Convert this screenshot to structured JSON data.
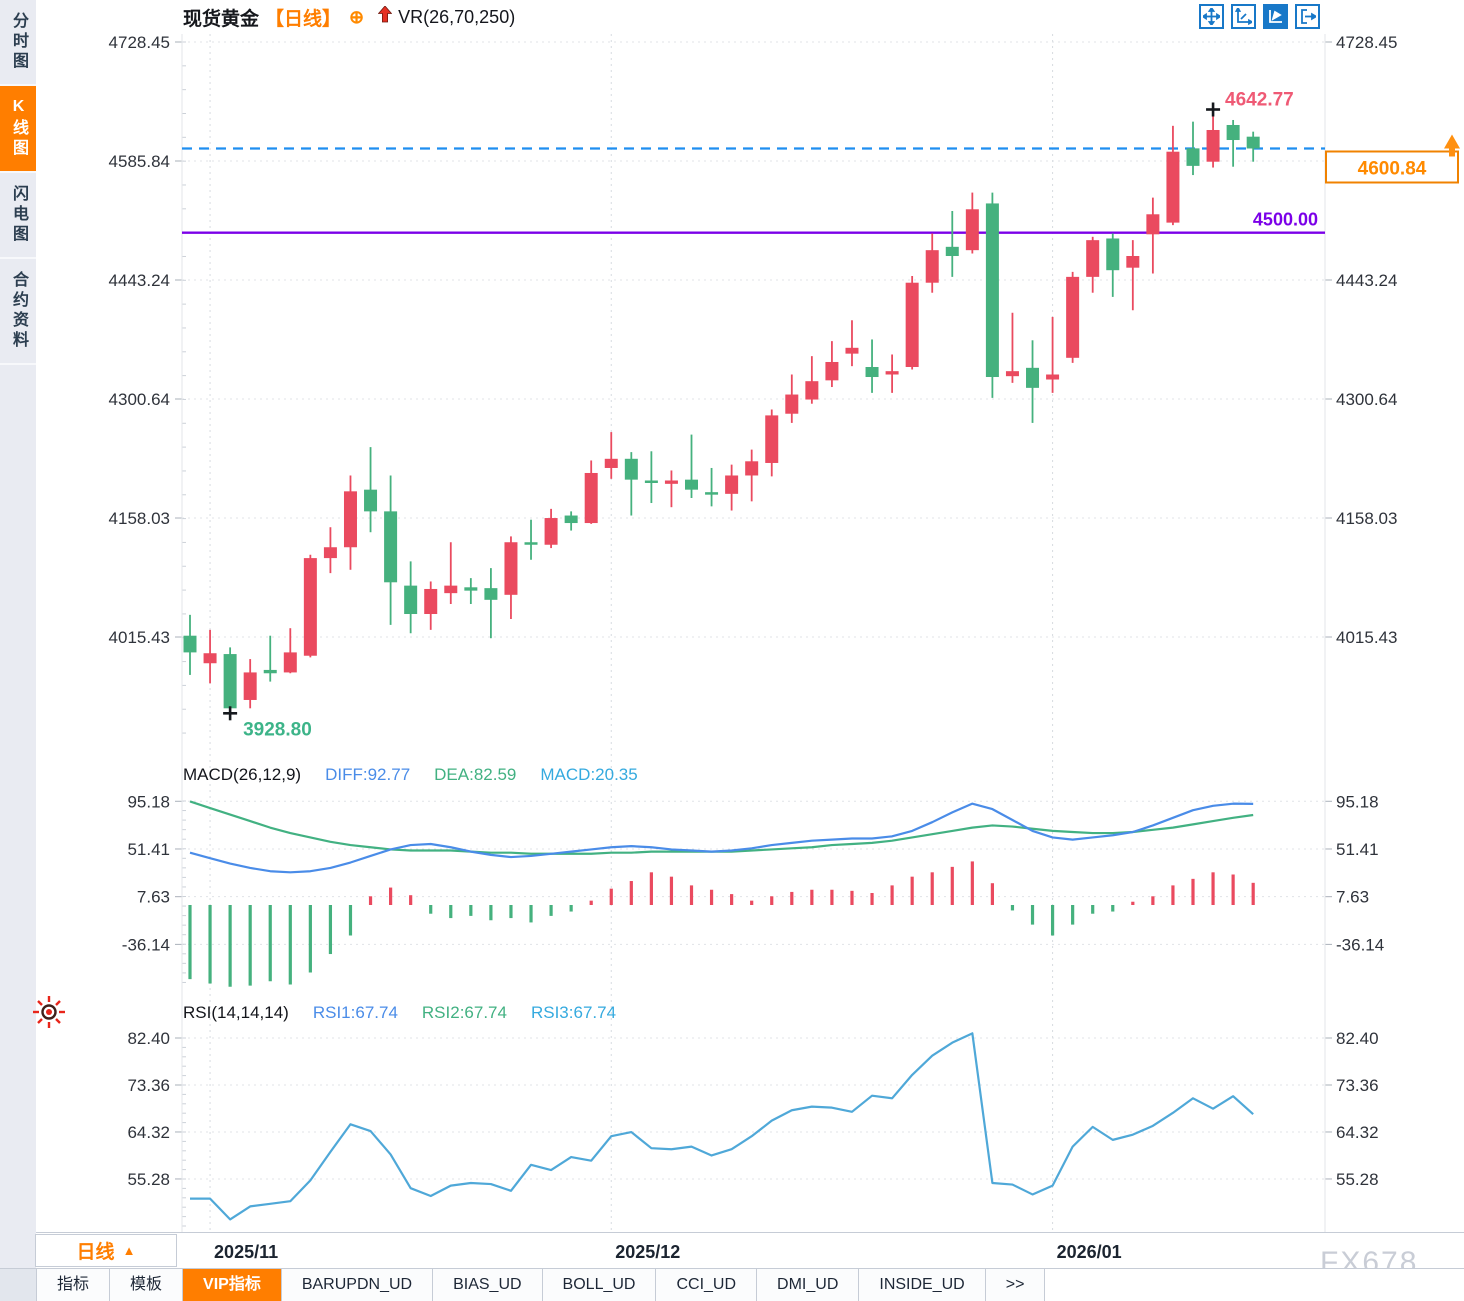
{
  "header": {
    "symbol": "现货黄金",
    "period_tag": "【日线】",
    "crosshair_glyph": "⊕",
    "indicator_label": "VR(26,70,250)"
  },
  "sidebar": {
    "items": [
      {
        "label": "分时图",
        "active": false
      },
      {
        "label": "K线图",
        "active": true
      },
      {
        "label": "闪电图",
        "active": false
      },
      {
        "label": "合约资料",
        "active": false
      }
    ]
  },
  "colors": {
    "accent_orange": "#ff7e00",
    "toolbar_blue": "#1878c8",
    "candle_up": "#ea4a5f",
    "candle_down": "#45b17e",
    "guide_dashed_blue": "#1e8ef0",
    "guide_purple": "#7b00e8",
    "rsi_line": "#4fa8d8"
  },
  "chart_data": {
    "type": "candlestick",
    "title": "现货黄金 日线 (Spot Gold Daily)",
    "x_axis": {
      "labels": [
        {
          "text": "2025/11",
          "index": 1
        },
        {
          "text": "2025/12",
          "index": 21
        },
        {
          "text": "2026/01",
          "index": 43
        }
      ]
    },
    "panels": [
      {
        "name": "price",
        "y_ticks": [
          4728.45,
          4585.84,
          4443.24,
          4300.64,
          4158.03,
          4015.43
        ],
        "colors": {
          "up": "#ea4a5f",
          "down": "#45b17e"
        },
        "candles": [
          [
            4017,
            4042,
            3970,
            3997
          ],
          [
            3984,
            4024,
            3960,
            3996
          ],
          [
            3995,
            4003,
            3928.8,
            3930
          ],
          [
            3940,
            3989,
            3930,
            3973
          ],
          [
            3976,
            4017,
            3962,
            3972
          ],
          [
            3973,
            4026,
            3972,
            3997
          ],
          [
            3993,
            4114,
            3991,
            4110
          ],
          [
            4110,
            4147,
            4092,
            4123
          ],
          [
            4123,
            4209,
            4096,
            4190
          ],
          [
            4192,
            4243,
            4141,
            4166
          ],
          [
            4166,
            4209,
            4030,
            4081
          ],
          [
            4077,
            4106,
            4020,
            4043
          ],
          [
            4043,
            4082,
            4024,
            4073
          ],
          [
            4068,
            4129,
            4055,
            4077
          ],
          [
            4075,
            4086,
            4055,
            4071
          ],
          [
            4074,
            4098,
            4014,
            4060
          ],
          [
            4066,
            4136,
            4037,
            4129
          ],
          [
            4129,
            4156,
            4108,
            4126
          ],
          [
            4126,
            4169,
            4122,
            4158
          ],
          [
            4161,
            4166,
            4143,
            4152
          ],
          [
            4152,
            4227,
            4151,
            4212
          ],
          [
            4218,
            4261,
            4205,
            4229
          ],
          [
            4229,
            4237,
            4161,
            4204
          ],
          [
            4203,
            4238,
            4176,
            4200
          ],
          [
            4199,
            4215,
            4171,
            4203
          ],
          [
            4204,
            4258,
            4182,
            4192
          ],
          [
            4189,
            4218,
            4172,
            4186
          ],
          [
            4187,
            4222,
            4167,
            4209
          ],
          [
            4209,
            4240,
            4178,
            4226
          ],
          [
            4224,
            4288,
            4208,
            4281
          ],
          [
            4283,
            4330,
            4272,
            4306
          ],
          [
            4300,
            4352,
            4295,
            4322
          ],
          [
            4323,
            4370,
            4315,
            4345
          ],
          [
            4355,
            4395,
            4340,
            4362
          ],
          [
            4339,
            4372,
            4308,
            4327
          ],
          [
            4330,
            4354,
            4308,
            4334
          ],
          [
            4339,
            4448,
            4336,
            4440
          ],
          [
            4440,
            4499,
            4428,
            4479
          ],
          [
            4483,
            4526,
            4447,
            4472
          ],
          [
            4479,
            4548,
            4475,
            4528
          ],
          [
            4535,
            4548,
            4302,
            4327
          ],
          [
            4328,
            4404,
            4320,
            4334
          ],
          [
            4338,
            4371,
            4272,
            4314
          ],
          [
            4324,
            4399,
            4308,
            4330
          ],
          [
            4350,
            4453,
            4344,
            4447
          ],
          [
            4447,
            4495,
            4428,
            4491
          ],
          [
            4493,
            4499,
            4423,
            4455
          ],
          [
            4458,
            4491,
            4407,
            4472
          ],
          [
            4498,
            4542,
            4451,
            4522
          ],
          [
            4512,
            4628,
            4509,
            4597
          ],
          [
            4601,
            4633,
            4569,
            4580
          ],
          [
            4585,
            4642.77,
            4578,
            4623
          ],
          [
            4629,
            4635,
            4579,
            4611
          ],
          [
            4615,
            4621,
            4585,
            4600.84
          ]
        ],
        "lines": [
          {
            "value": 4600.84,
            "label": "4600.84",
            "color": "#1e8ef0",
            "style": "dashed",
            "show_label": false
          },
          {
            "value": 4500.0,
            "label": "4500.00",
            "color": "#7b00e8",
            "style": "solid",
            "show_label": true
          }
        ],
        "annotations": {
          "high": {
            "index": 51,
            "value": 4642.77,
            "label": "4642.77",
            "color": "#ef5a75"
          },
          "low": {
            "index": 2,
            "value": 3928.8,
            "label": "3928.80",
            "color": "#3db489"
          },
          "last": {
            "value": 4600.84,
            "label": "4600.84",
            "box_color": "#f08200",
            "text_color": "#ff8a00"
          }
        }
      },
      {
        "name": "macd",
        "title": "MACD(26,12,9)",
        "legend": [
          {
            "label": "DIFF:92.77",
            "color": "#4a8ce8"
          },
          {
            "label": "DEA:82.59",
            "color": "#42b182"
          },
          {
            "label": "MACD:20.35",
            "color": "#35aadf"
          }
        ],
        "y_ticks": [
          95.18,
          51.41,
          7.63,
          -36.14
        ],
        "diff": [
          48,
          43,
          38,
          34,
          31,
          30,
          31,
          34,
          39,
          45,
          51,
          55,
          56,
          53,
          49,
          46,
          44,
          45,
          47,
          49,
          51,
          53,
          54,
          53,
          51,
          50,
          49,
          50,
          52,
          55,
          57,
          59,
          60,
          61,
          61,
          63,
          68,
          76,
          85,
          93,
          88,
          78,
          68,
          62,
          60,
          62,
          64,
          67,
          73,
          80,
          87,
          91,
          93,
          92.77
        ],
        "dea": [
          95,
          89,
          83,
          77,
          71,
          66,
          62,
          58,
          55,
          53,
          51,
          50,
          50,
          50,
          49,
          48,
          48,
          47,
          47,
          47,
          47,
          48,
          48,
          49,
          49,
          49,
          49,
          49,
          50,
          51,
          52,
          53,
          55,
          56,
          57,
          59,
          62,
          65,
          68,
          71,
          73,
          72,
          70,
          68,
          67,
          66,
          66,
          67,
          69,
          71,
          74,
          77,
          80,
          82.59
        ],
        "hist": [
          -68,
          -72,
          -75,
          -74,
          -70,
          -73,
          -62,
          -45,
          -28,
          8,
          16,
          9,
          -8,
          -12,
          -10,
          -14,
          -12,
          -16,
          -10,
          -6,
          4,
          15,
          22,
          30,
          26,
          18,
          14,
          10,
          4,
          8,
          12,
          14,
          14,
          13,
          11,
          18,
          26,
          30,
          35,
          40,
          20,
          -5,
          -18,
          -28,
          -18,
          -8,
          -6,
          3,
          8,
          18,
          24,
          30,
          28,
          20.35
        ]
      },
      {
        "name": "rsi",
        "title": "RSI(14,14,14)",
        "legend": [
          {
            "label": "RSI1:67.74",
            "color": "#4a8ce8"
          },
          {
            "label": "RSI2:67.74",
            "color": "#42b182"
          },
          {
            "label": "RSI3:67.74",
            "color": "#35aadf"
          }
        ],
        "y_ticks": [
          82.4,
          73.36,
          64.32,
          55.28
        ],
        "line_color": "#4fa8d8",
        "rsi": [
          51.5,
          51.5,
          47.5,
          50.0,
          50.5,
          51.0,
          55.0,
          60.5,
          65.8,
          64.5,
          60.0,
          53.5,
          52.0,
          54.0,
          54.5,
          54.3,
          53.0,
          58.0,
          57.0,
          59.5,
          58.8,
          63.5,
          64.3,
          61.2,
          61.0,
          61.5,
          59.8,
          61.0,
          63.5,
          66.5,
          68.5,
          69.2,
          69.0,
          68.2,
          71.3,
          70.8,
          75.3,
          79.0,
          81.5,
          83.3,
          54.5,
          54.2,
          52.3,
          54.0,
          61.5,
          65.3,
          62.8,
          63.8,
          65.5,
          68.0,
          70.8,
          68.8,
          71.2,
          67.74
        ]
      }
    ]
  },
  "bottom": {
    "period_label": "日线",
    "period_arrow": "▲",
    "tabs": [
      {
        "label": "指标",
        "active": false
      },
      {
        "label": "模板",
        "active": false
      },
      {
        "label": "VIP指标",
        "active": true
      },
      {
        "label": "BARUPDN_UD",
        "active": false
      },
      {
        "label": "BIAS_UD",
        "active": false
      },
      {
        "label": "BOLL_UD",
        "active": false
      },
      {
        "label": "CCI_UD",
        "active": false
      },
      {
        "label": "DMI_UD",
        "active": false
      },
      {
        "label": "INSIDE_UD",
        "active": false
      },
      {
        "label": ">>",
        "active": false
      }
    ],
    "watermark": "FX678"
  }
}
